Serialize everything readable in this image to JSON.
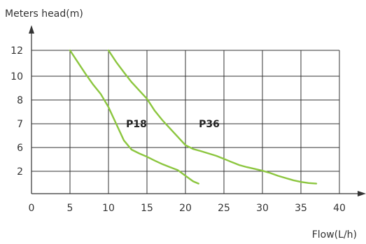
{
  "chart_data": {
    "type": "line",
    "title": "",
    "xlabel": "Flow(L/h)",
    "ylabel": "Meters head(m)",
    "xlim": [
      0,
      40
    ],
    "x_ticks": [
      0,
      5,
      10,
      15,
      20,
      25,
      30,
      35,
      40
    ],
    "y_tick_labels": [
      "2",
      "6",
      "7",
      "8",
      "10",
      "12"
    ],
    "grid": true,
    "line_color": "#8cc63f",
    "series": [
      {
        "name": "P18",
        "points": [
          [
            5,
            12
          ],
          [
            6,
            11.1
          ],
          [
            7,
            10.2
          ],
          [
            8,
            9.3
          ],
          [
            9,
            8.5
          ],
          [
            10,
            7.7
          ],
          [
            11,
            7.0
          ],
          [
            12,
            6.3
          ],
          [
            13,
            5.65
          ],
          [
            14,
            5.0
          ],
          [
            15,
            4.45
          ],
          [
            16,
            3.8
          ],
          [
            17,
            3.2
          ],
          [
            18,
            2.7
          ],
          [
            19,
            2.2
          ],
          [
            20,
            1.6
          ],
          [
            21,
            1.1
          ],
          [
            21.7,
            0.9
          ]
        ]
      },
      {
        "name": "P36",
        "points": [
          [
            10,
            12
          ],
          [
            11,
            11.1
          ],
          [
            12,
            10.3
          ],
          [
            13,
            9.5
          ],
          [
            14,
            8.8
          ],
          [
            15,
            8.1
          ],
          [
            16,
            7.55
          ],
          [
            17,
            7.15
          ],
          [
            18,
            6.8
          ],
          [
            19,
            6.45
          ],
          [
            20,
            6.1
          ],
          [
            21,
            5.75
          ],
          [
            22,
            5.4
          ],
          [
            23,
            5.0
          ],
          [
            24,
            4.6
          ],
          [
            25,
            4.1
          ],
          [
            26,
            3.55
          ],
          [
            27,
            3.05
          ],
          [
            28,
            2.7
          ],
          [
            29,
            2.4
          ],
          [
            30,
            2.1
          ],
          [
            31,
            1.85
          ],
          [
            32,
            1.6
          ],
          [
            33,
            1.4
          ],
          [
            34,
            1.2
          ],
          [
            35,
            1.05
          ],
          [
            36,
            0.95
          ],
          [
            37,
            0.9
          ]
        ]
      }
    ]
  }
}
